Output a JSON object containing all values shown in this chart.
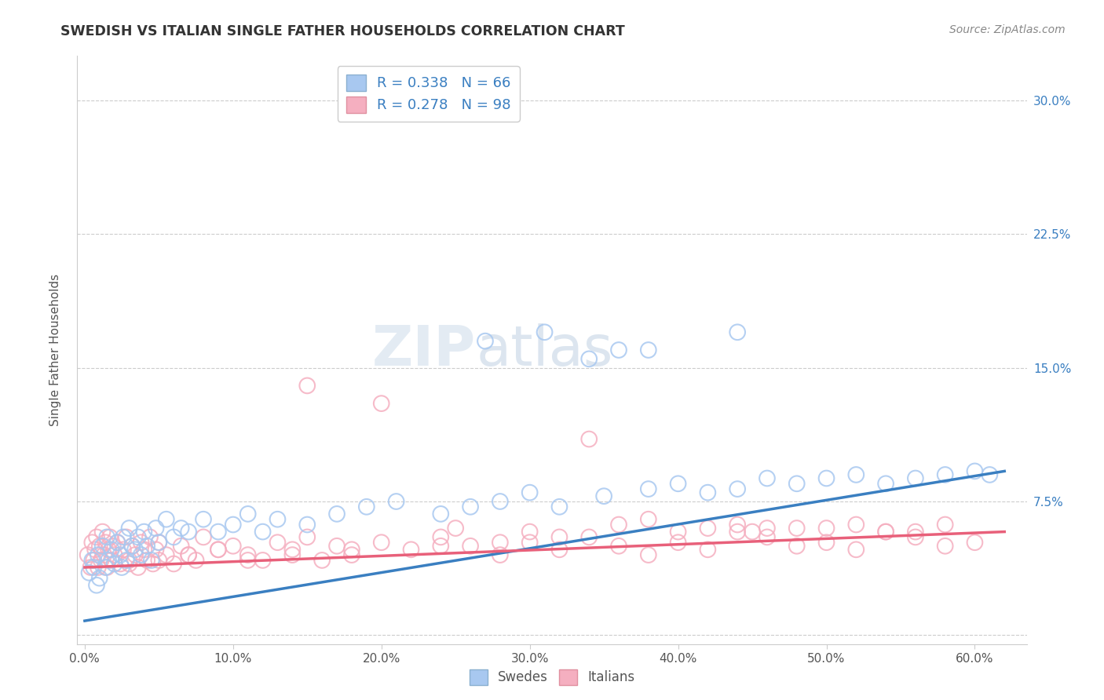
{
  "title": "SWEDISH VS ITALIAN SINGLE FATHER HOUSEHOLDS CORRELATION CHART",
  "source": "Source: ZipAtlas.com",
  "ylabel": "Single Father Households",
  "x_tick_labels": [
    "0.0%",
    "10.0%",
    "20.0%",
    "30.0%",
    "40.0%",
    "50.0%",
    "60.0%"
  ],
  "x_tick_vals": [
    0.0,
    0.1,
    0.2,
    0.3,
    0.4,
    0.5,
    0.6
  ],
  "y_tick_vals": [
    0.0,
    0.075,
    0.15,
    0.225,
    0.3
  ],
  "y_tick_labels_right": [
    "",
    "7.5%",
    "15.0%",
    "22.5%",
    "30.0%"
  ],
  "xlim": [
    -0.005,
    0.635
  ],
  "ylim": [
    -0.005,
    0.325
  ],
  "swedish_color": "#a8c8f0",
  "italian_color": "#f5afc0",
  "swedish_line_color": "#3a7fc1",
  "italian_line_color": "#e8607a",
  "legend_label_sw": "R = 0.338   N = 66",
  "legend_label_it": "R = 0.278   N = 98",
  "watermark_zip": "ZIP",
  "watermark_atlas": "atlas",
  "bottom_legend_sw": "Swedes",
  "bottom_legend_it": "Italians",
  "sw_x": [
    0.003,
    0.005,
    0.006,
    0.008,
    0.009,
    0.01,
    0.012,
    0.014,
    0.015,
    0.016,
    0.018,
    0.02,
    0.022,
    0.024,
    0.025,
    0.026,
    0.028,
    0.03,
    0.032,
    0.034,
    0.036,
    0.038,
    0.04,
    0.042,
    0.045,
    0.048,
    0.05,
    0.055,
    0.06,
    0.065,
    0.07,
    0.08,
    0.09,
    0.1,
    0.11,
    0.12,
    0.13,
    0.15,
    0.17,
    0.19,
    0.21,
    0.24,
    0.26,
    0.28,
    0.3,
    0.32,
    0.35,
    0.38,
    0.4,
    0.42,
    0.44,
    0.46,
    0.48,
    0.5,
    0.52,
    0.54,
    0.56,
    0.58,
    0.6,
    0.61,
    0.27,
    0.31,
    0.34,
    0.36,
    0.44,
    0.38
  ],
  "sw_y": [
    0.035,
    0.042,
    0.038,
    0.028,
    0.045,
    0.032,
    0.05,
    0.038,
    0.055,
    0.042,
    0.048,
    0.04,
    0.052,
    0.045,
    0.038,
    0.055,
    0.042,
    0.06,
    0.05,
    0.048,
    0.055,
    0.045,
    0.058,
    0.05,
    0.042,
    0.06,
    0.052,
    0.065,
    0.055,
    0.06,
    0.058,
    0.065,
    0.058,
    0.062,
    0.068,
    0.058,
    0.065,
    0.062,
    0.068,
    0.072,
    0.075,
    0.068,
    0.072,
    0.075,
    0.08,
    0.072,
    0.078,
    0.082,
    0.085,
    0.08,
    0.082,
    0.088,
    0.085,
    0.088,
    0.09,
    0.085,
    0.088,
    0.09,
    0.092,
    0.09,
    0.165,
    0.17,
    0.155,
    0.16,
    0.17,
    0.16
  ],
  "it_x": [
    0.002,
    0.004,
    0.005,
    0.006,
    0.007,
    0.008,
    0.009,
    0.01,
    0.011,
    0.012,
    0.013,
    0.014,
    0.015,
    0.016,
    0.017,
    0.018,
    0.019,
    0.02,
    0.022,
    0.024,
    0.026,
    0.028,
    0.03,
    0.032,
    0.034,
    0.036,
    0.038,
    0.04,
    0.042,
    0.044,
    0.046,
    0.048,
    0.05,
    0.055,
    0.06,
    0.065,
    0.07,
    0.075,
    0.08,
    0.09,
    0.1,
    0.11,
    0.12,
    0.13,
    0.14,
    0.15,
    0.16,
    0.17,
    0.18,
    0.2,
    0.22,
    0.24,
    0.26,
    0.28,
    0.3,
    0.32,
    0.34,
    0.36,
    0.38,
    0.4,
    0.42,
    0.44,
    0.46,
    0.48,
    0.5,
    0.52,
    0.54,
    0.56,
    0.58,
    0.6,
    0.42,
    0.45,
    0.38,
    0.34,
    0.2,
    0.15,
    0.58,
    0.3,
    0.25,
    0.36,
    0.48,
    0.54,
    0.44,
    0.5,
    0.56,
    0.52,
    0.46,
    0.4,
    0.32,
    0.28,
    0.24,
    0.18,
    0.14,
    0.11,
    0.09,
    0.07,
    0.05,
    0.03
  ],
  "it_y": [
    0.045,
    0.038,
    0.052,
    0.042,
    0.048,
    0.055,
    0.038,
    0.05,
    0.042,
    0.058,
    0.045,
    0.052,
    0.038,
    0.048,
    0.055,
    0.042,
    0.05,
    0.045,
    0.052,
    0.04,
    0.048,
    0.055,
    0.042,
    0.05,
    0.045,
    0.038,
    0.052,
    0.048,
    0.042,
    0.055,
    0.04,
    0.048,
    0.052,
    0.045,
    0.04,
    0.05,
    0.045,
    0.042,
    0.055,
    0.048,
    0.05,
    0.045,
    0.042,
    0.052,
    0.048,
    0.055,
    0.042,
    0.05,
    0.045,
    0.052,
    0.048,
    0.055,
    0.05,
    0.045,
    0.052,
    0.048,
    0.055,
    0.05,
    0.045,
    0.052,
    0.048,
    0.058,
    0.055,
    0.05,
    0.052,
    0.048,
    0.058,
    0.055,
    0.05,
    0.052,
    0.06,
    0.058,
    0.065,
    0.11,
    0.13,
    0.14,
    0.062,
    0.058,
    0.06,
    0.062,
    0.06,
    0.058,
    0.062,
    0.06,
    0.058,
    0.062,
    0.06,
    0.058,
    0.055,
    0.052,
    0.05,
    0.048,
    0.045,
    0.042,
    0.048,
    0.045,
    0.042,
    0.04
  ],
  "sw_trend_x": [
    0.0,
    0.62
  ],
  "sw_trend_y": [
    0.008,
    0.092
  ],
  "it_trend_x": [
    0.0,
    0.62
  ],
  "it_trend_y": [
    0.038,
    0.058
  ]
}
